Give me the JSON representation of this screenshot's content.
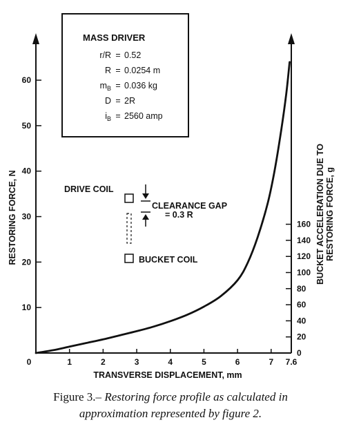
{
  "chart_data": {
    "type": "line",
    "xlabel": "TRANSVERSE DISPLACEMENT, mm",
    "ylabel_left": "RESTORING FORCE, N",
    "ylabel_right_line1": "BUCKET ACCELERATION DUE TO",
    "ylabel_right_line2": "RESTORING FORCE, g",
    "xlim": [
      0,
      7.6
    ],
    "ylim_left": [
      0,
      67
    ],
    "ylim_right": [
      0,
      180
    ],
    "x_ticks": [
      "0",
      "1",
      "2",
      "3",
      "4",
      "5",
      "6",
      "7",
      "7.6"
    ],
    "x_tick_values": [
      0,
      1,
      2,
      3,
      4,
      5,
      6,
      7,
      7.6
    ],
    "y_left_ticks": [
      10,
      20,
      30,
      40,
      50,
      60
    ],
    "y_right_ticks": [
      0,
      20,
      40,
      60,
      80,
      100,
      120,
      140,
      160
    ],
    "series": [
      {
        "x": [
          0,
          0.5,
          1,
          1.5,
          2,
          2.5,
          3,
          3.5,
          4,
          4.5,
          5,
          5.5,
          6,
          6.3,
          6.6,
          6.9,
          7.1,
          7.3,
          7.45,
          7.55
        ],
        "y": [
          0,
          0.6,
          1.4,
          2.2,
          3.0,
          3.9,
          4.8,
          5.8,
          7.0,
          8.4,
          10.2,
          12.5,
          16.0,
          19.8,
          25.5,
          33.0,
          40.0,
          49.0,
          57.0,
          64.0
        ]
      }
    ],
    "legend_box": {
      "title": "MASS DRIVER",
      "rows": [
        {
          "sym": "r/R",
          "eq": "=",
          "val": "0.52"
        },
        {
          "sym": "R",
          "eq": "=",
          "val": "0.0254 m"
        },
        {
          "sym": "m",
          "sub": "B",
          "eq": "=",
          "val": "0.036 kg"
        },
        {
          "sym": "D",
          "eq": "=",
          "val": "2R"
        },
        {
          "sym": "i",
          "sub": "B",
          "eq": "=",
          "val": "2560 amp"
        }
      ]
    },
    "annotations": {
      "drive_coil": "DRIVE COIL",
      "clearance_gap": "CLEARANCE GAP",
      "clearance_value": "= 0.3 R",
      "bucket_coil": "BUCKET COIL"
    }
  },
  "caption": {
    "lead": "Figure 3.–",
    "line1_rest": "Restoring force profile as calculated in",
    "line2": "approximation represented by figure 2."
  }
}
